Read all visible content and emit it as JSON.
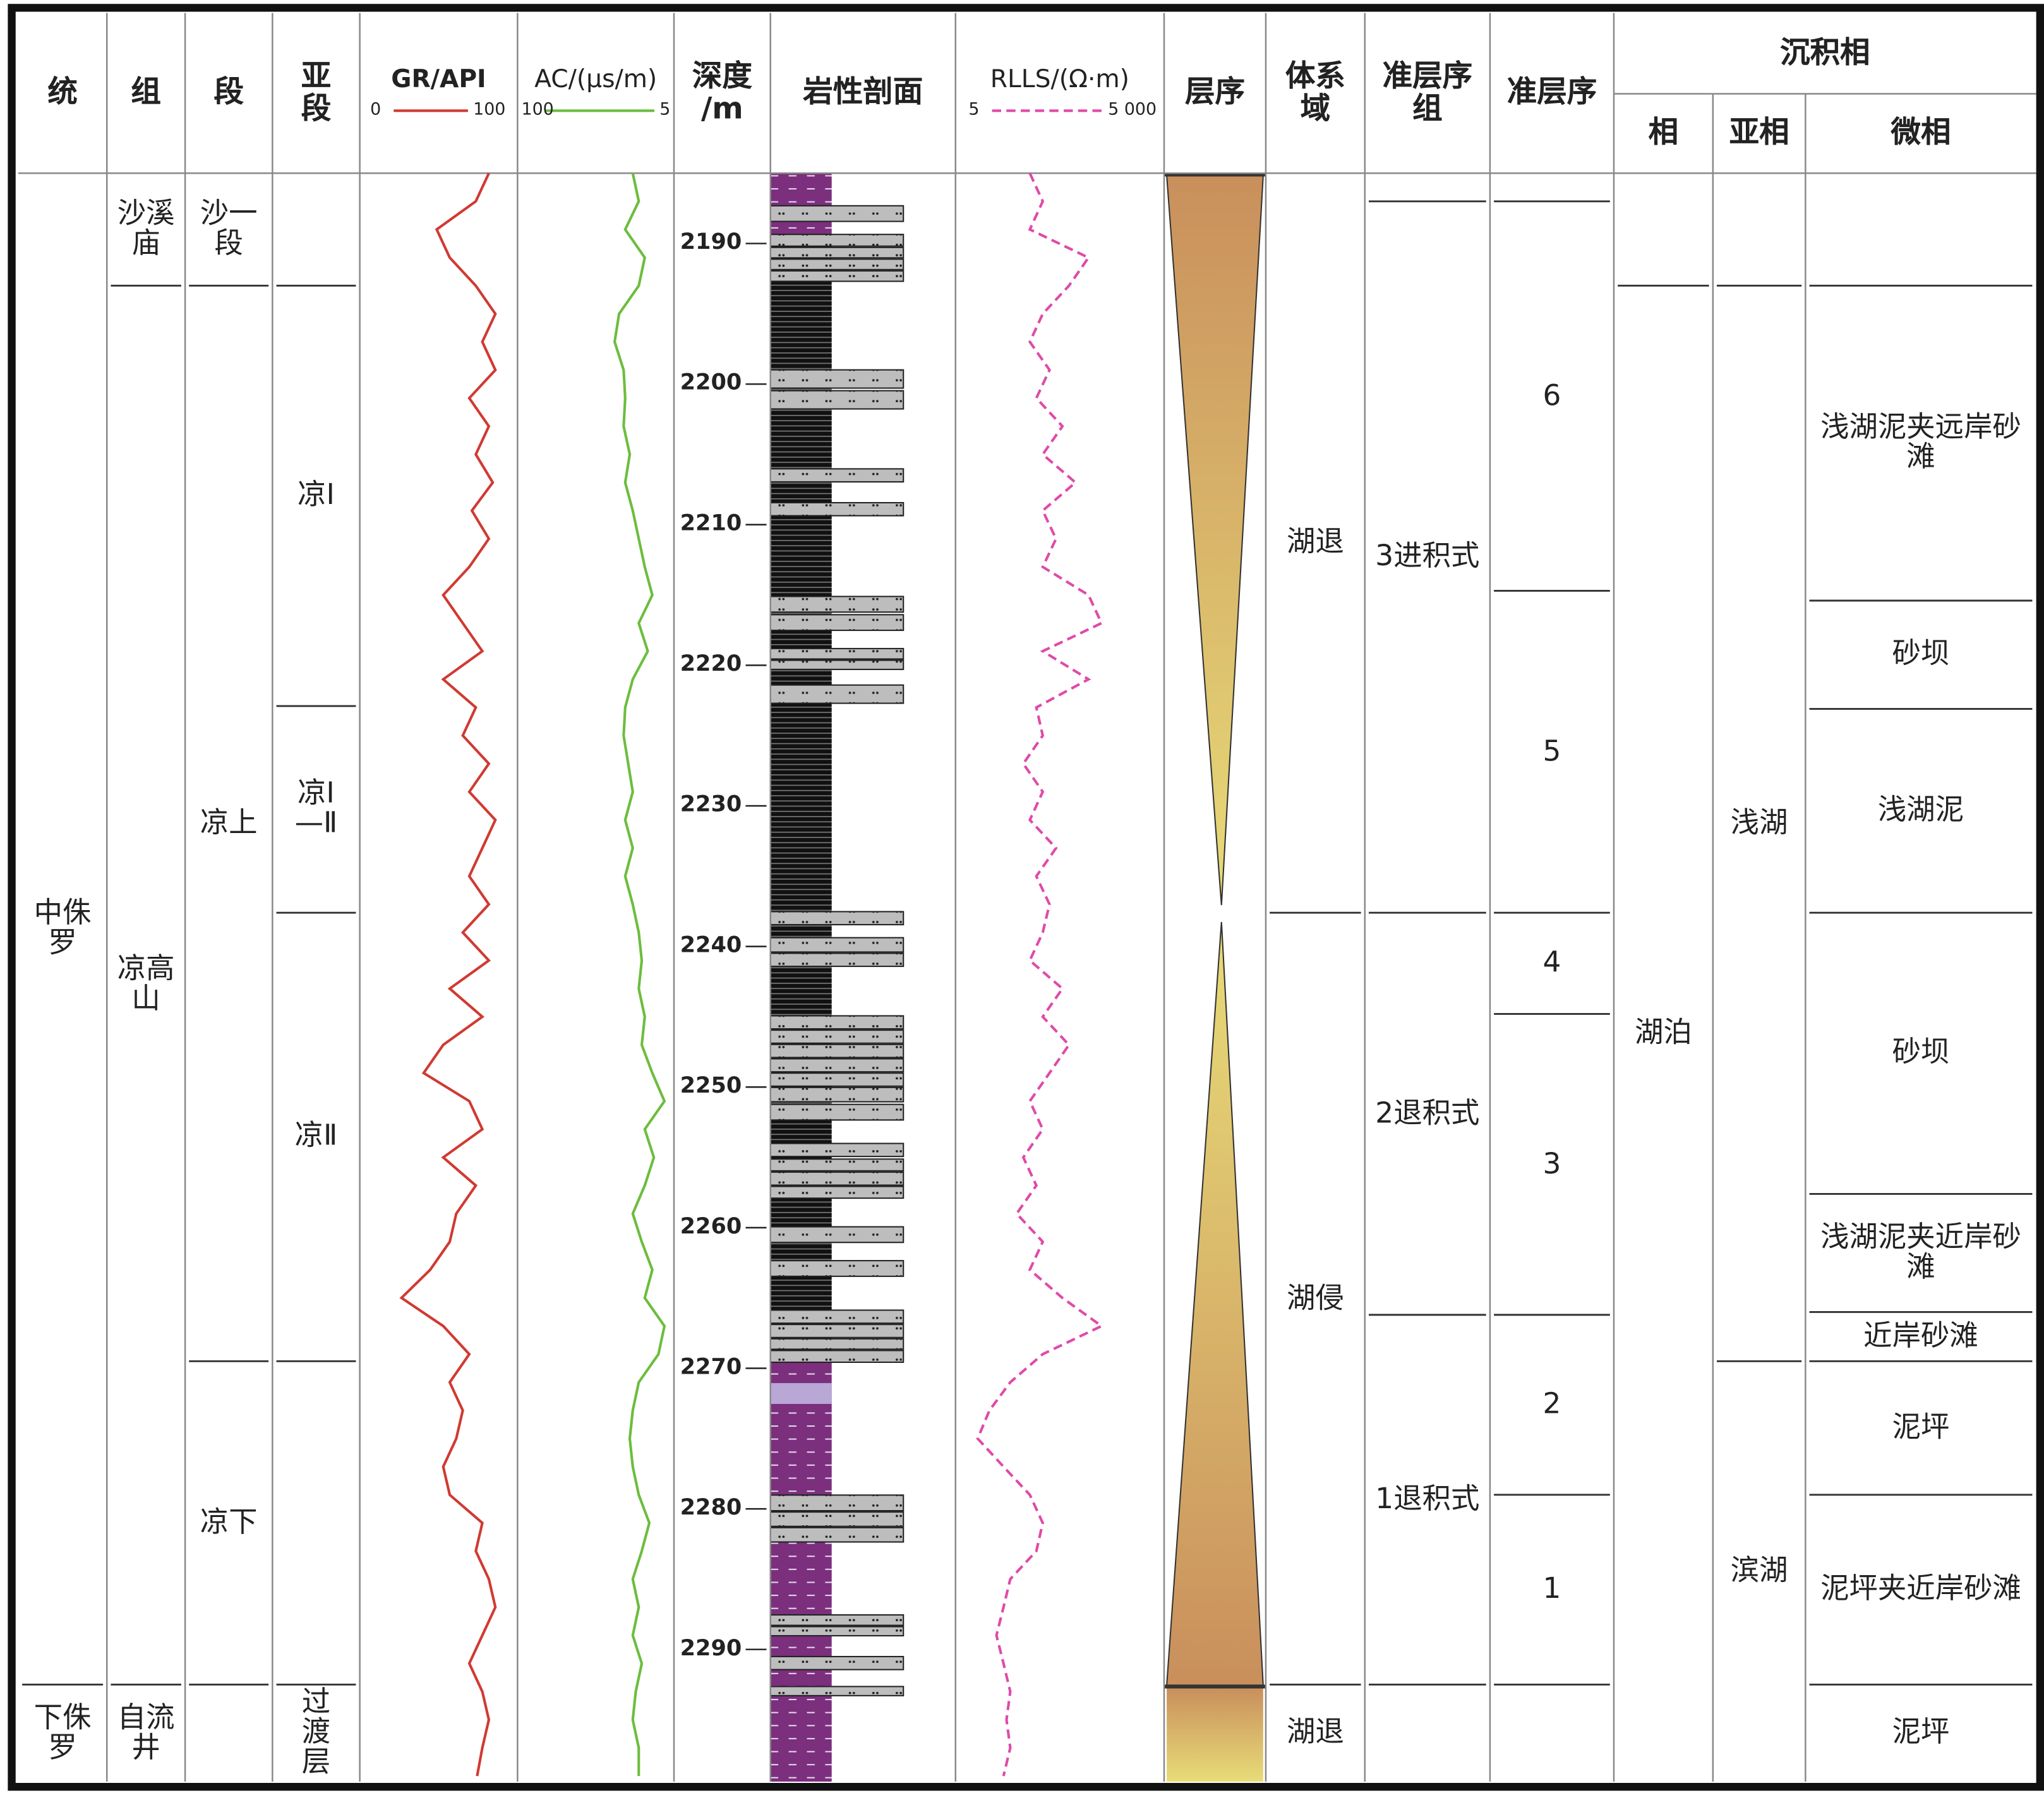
{
  "columns_left": [
    {
      "header": "统",
      "cells": [
        {
          "text": "中侏\n罗",
          "top": 2185,
          "base": 2292.5
        },
        {
          "text": "下侏\n罗",
          "top": 2292.5,
          "base": 2299.4
        }
      ]
    },
    {
      "header": "组",
      "cells": [
        {
          "text": "沙溪\n庙",
          "top": 2185,
          "base": 2193
        },
        {
          "text": "凉高\n山",
          "top": 2193,
          "base": 2292.5
        },
        {
          "text": "自流\n井",
          "top": 2292.5,
          "base": 2299.4
        }
      ]
    },
    {
      "header": "段",
      "cells": [
        {
          "text": "沙一\n段",
          "top": 2185,
          "base": 2193
        },
        {
          "text": "凉上",
          "top": 2193,
          "base": 2269.5
        },
        {
          "text": "凉下",
          "top": 2269.5,
          "base": 2292.5
        },
        {
          "top": 2292.5,
          "base": 2299.4
        }
      ]
    },
    {
      "header": "亚\n段",
      "cells": [
        {
          "top": 2185,
          "base": 2193
        },
        {
          "text": "凉Ⅰ",
          "top": 2193,
          "base": 2222.9
        },
        {
          "text": "凉Ⅰ\n—Ⅱ",
          "top": 2222.9,
          "base": 2237.6
        },
        {
          "text": "凉Ⅱ",
          "top": 2237.6,
          "base": 2269.5
        },
        {
          "top": 2269.5,
          "base": 2292.5
        },
        {
          "text": "过\n渡\n层",
          "top": 2292.5,
          "base": 2299.4
        }
      ]
    }
  ],
  "logs": {
    "depth": [
      2185,
      2187,
      2189,
      2191,
      2193,
      2195,
      2197,
      2199,
      2201,
      2203,
      2205,
      2207,
      2209,
      2211,
      2213,
      2215,
      2217,
      2219,
      2221,
      2223,
      2225,
      2227,
      2229,
      2231,
      2233,
      2235,
      2237,
      2239,
      2241,
      2243,
      2245,
      2247,
      2249,
      2251,
      2253,
      2255,
      2257,
      2259,
      2261,
      2263,
      2265,
      2267,
      2269,
      2271,
      2273,
      2275,
      2277,
      2279,
      2281,
      2283,
      2285,
      2287,
      2289,
      2291,
      2293,
      2295,
      2297,
      2299
    ],
    "gr": {
      "name": "GR/API",
      "xlim": [
        0,
        100
      ],
      "color": "#d03a32",
      "values": [
        89,
        79,
        49,
        59,
        79,
        94,
        84,
        94,
        74,
        89,
        79,
        92,
        76,
        89,
        74,
        54,
        69,
        84,
        54,
        79,
        69,
        89,
        74,
        94,
        84,
        74,
        89,
        69,
        89,
        59,
        84,
        54,
        39,
        74,
        84,
        54,
        79,
        64,
        59,
        44,
        22,
        54,
        74,
        59,
        69,
        64,
        54,
        59,
        84,
        79,
        89,
        94,
        84,
        74,
        84,
        89,
        84,
        80
      ]
    },
    "ac": {
      "name": "AC/(μs/m)",
      "xlim": [
        100,
        5
      ],
      "color": "#6cbd3e",
      "values": [
        28,
        24,
        33,
        20,
        24,
        37,
        40,
        34,
        33,
        34,
        30,
        33,
        28,
        24,
        20,
        15,
        24,
        18,
        28,
        33,
        34,
        31,
        28,
        33,
        28,
        33,
        28,
        24,
        22,
        24,
        20,
        22,
        15,
        7,
        20,
        14,
        20,
        28,
        22,
        15,
        20,
        7,
        11,
        24,
        28,
        30,
        28,
        24,
        17,
        22,
        28,
        24,
        28,
        22,
        26,
        28,
        24,
        24
      ]
    },
    "rlls": {
      "name": "RLLS/(Ω·m)",
      "xlim": [
        5,
        {
          "value": 5000,
          "label": "5 000"
        }
      ],
      "log": true,
      "dashed": true,
      "color": "#e04aa8",
      "values": [
        46,
        75,
        46,
        424,
        202,
        75,
        46,
        97,
        59,
        158,
        75,
        259,
        75,
        124,
        75,
        424,
        695,
        75,
        424,
        59,
        75,
        36,
        75,
        46,
        124,
        59,
        97,
        75,
        46,
        158,
        75,
        202,
        97,
        46,
        75,
        36,
        59,
        28,
        75,
        46,
        158,
        695,
        75,
        22,
        10,
        6.4,
        17,
        46,
        75,
        59,
        22,
        17,
        13,
        17,
        22,
        19,
        22,
        17
      ]
    }
  },
  "depth_axis": {
    "label": "深度\n/m",
    "ylim": [
      2185,
      2299.4
    ],
    "yticks": [
      2190,
      2200,
      2210,
      2220,
      2230,
      2240,
      2250,
      2260,
      2270,
      2280,
      2290
    ]
  },
  "lithology": {
    "header": "岩性剖面"
  },
  "sequence": {
    "header": "层序"
  },
  "columns_right": [
    {
      "header": "体系\n域",
      "cells": [
        {
          "text": "湖退",
          "top": 2185,
          "base": 2237.6
        },
        {
          "text": "湖侵",
          "top": 2237.6,
          "base": 2292.5
        },
        {
          "text": "湖退",
          "top": 2292.5,
          "base": 2299.4
        }
      ]
    },
    {
      "header": "准层序\n组",
      "cells": [
        {
          "top": 2185,
          "base": 2187
        },
        {
          "text": "3进积式",
          "top": 2187,
          "base": 2237.6
        },
        {
          "text": "2退积式",
          "top": 2237.6,
          "base": 2266.2
        },
        {
          "text": "1退积式",
          "top": 2266.2,
          "base": 2292.5
        },
        {
          "top": 2292.5,
          "base": 2299.4
        }
      ]
    },
    {
      "header": "准层序",
      "cells": [
        {
          "top": 2185,
          "base": 2187
        },
        {
          "text": "6",
          "top": 2187,
          "base": 2214.7
        },
        {
          "text": "5",
          "top": 2214.7,
          "base": 2237.6
        },
        {
          "text": "4",
          "top": 2237.6,
          "base": 2244.8
        },
        {
          "text": "3",
          "top": 2244.8,
          "base": 2266.2
        },
        {
          "text": "2",
          "top": 2266.2,
          "base": 2279
        },
        {
          "text": "1",
          "top": 2279,
          "base": 2292.5
        },
        {
          "top": 2292.5,
          "base": 2299.4
        }
      ]
    }
  ],
  "facies": {
    "header": "沉积相",
    "columns": [
      {
        "header": "相",
        "cells": [
          {
            "top": 2185,
            "base": 2193
          },
          {
            "text": "湖泊",
            "top": 2193,
            "base": 2299.4
          }
        ]
      },
      {
        "header": "亚相",
        "cells": [
          {
            "top": 2185,
            "base": 2193
          },
          {
            "text": "浅湖",
            "top": 2193,
            "base": 2269.5
          },
          {
            "text": "滨湖",
            "top": 2269.5,
            "base": 2299.4
          }
        ]
      },
      {
        "header": "微相",
        "cells": [
          {
            "top": 2185,
            "base": 2193
          },
          {
            "text": "浅湖泥夹远岸砂\n滩",
            "top": 2193,
            "base": 2215.4
          },
          {
            "text": "砂坝",
            "top": 2215.4,
            "base": 2223.1
          },
          {
            "text": "浅湖泥",
            "top": 2223.1,
            "base": 2237.6
          },
          {
            "text": "砂坝",
            "top": 2237.6,
            "base": 2257.6
          },
          {
            "text": "浅湖泥夹近岸砂\n滩",
            "top": 2257.6,
            "base": 2266
          },
          {
            "text": "近岸砂滩",
            "top": 2266,
            "base": 2269.5
          },
          {
            "text": "泥坪",
            "top": 2269.5,
            "base": 2279
          },
          {
            "text": "泥坪夹近岸砂滩",
            "top": 2279,
            "base": 2292.5
          },
          {
            "text": "泥坪",
            "top": 2292.5,
            "base": 2299.4
          }
        ]
      }
    ]
  }
}
